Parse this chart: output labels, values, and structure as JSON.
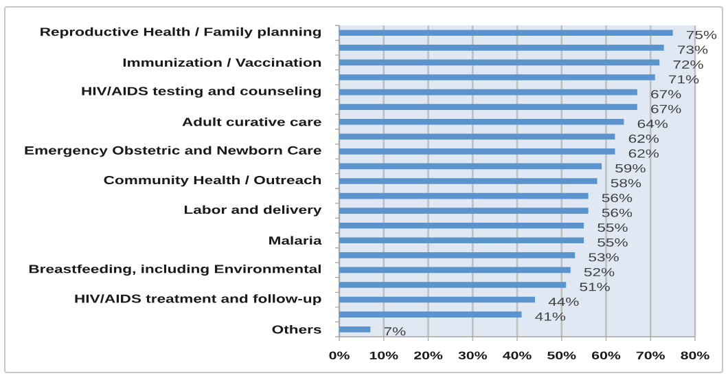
{
  "chart_data": {
    "type": "bar",
    "orientation": "horizontal",
    "categories": [
      "Reproductive Health / Family planning",
      null,
      "Immunization / Vaccination",
      null,
      "HIV/AIDS testing and counseling",
      null,
      "Adult curative care",
      null,
      "Emergency Obstetric and Newborn Care",
      null,
      "Community Health / Outreach",
      null,
      "Labor and delivery",
      null,
      "Malaria",
      null,
      "Breastfeeding, including Environmental",
      null,
      "HIV/AIDS treatment and follow-up",
      null,
      "Others"
    ],
    "values": [
      75,
      73,
      72,
      71,
      67,
      67,
      64,
      62,
      62,
      59,
      58,
      56,
      56,
      55,
      55,
      53,
      52,
      51,
      44,
      41,
      7
    ],
    "value_labels": [
      "75%",
      "73%",
      "72%",
      "71%",
      "67%",
      "67%",
      "64%",
      "62%",
      "62%",
      "59%",
      "58%",
      "56%",
      "56%",
      "55%",
      "55%",
      "53%",
      "52%",
      "51%",
      "44%",
      "41%",
      "7%"
    ],
    "color": "#5b93cd",
    "xlim": [
      0,
      80
    ],
    "xticks": [
      {
        "value": 0,
        "label": "0%"
      },
      {
        "value": 10,
        "label": "10%"
      },
      {
        "value": 20,
        "label": "20%"
      },
      {
        "value": 30,
        "label": "30%"
      },
      {
        "value": 40,
        "label": "40%"
      },
      {
        "value": 50,
        "label": "50%"
      },
      {
        "value": 60,
        "label": "60%"
      },
      {
        "value": 70,
        "label": "70%"
      },
      {
        "value": 80,
        "label": "80%"
      }
    ],
    "grid": "x"
  }
}
